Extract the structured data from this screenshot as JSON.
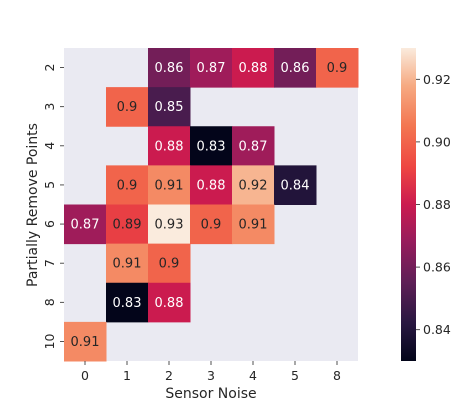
{
  "chart_data": {
    "type": "heatmap",
    "xlabel": "Sensor Noise",
    "ylabel": "Partially Remove Points",
    "x_categories": [
      "0",
      "1",
      "2",
      "3",
      "4",
      "5",
      "8"
    ],
    "y_categories": [
      "2",
      "3",
      "4",
      "5",
      "6",
      "7",
      "8",
      "10"
    ],
    "values": [
      [
        null,
        null,
        0.86,
        0.87,
        0.88,
        0.86,
        0.9
      ],
      [
        null,
        0.9,
        0.85,
        null,
        null,
        null,
        null
      ],
      [
        null,
        null,
        0.88,
        0.83,
        0.87,
        null,
        null
      ],
      [
        null,
        0.9,
        0.91,
        0.88,
        0.92,
        0.84,
        null
      ],
      [
        0.87,
        0.89,
        0.93,
        0.9,
        0.91,
        null,
        null
      ],
      [
        null,
        0.91,
        0.9,
        null,
        null,
        null,
        null
      ],
      [
        null,
        0.83,
        0.88,
        null,
        null,
        null,
        null
      ],
      [
        0.91,
        null,
        null,
        null,
        null,
        null,
        null
      ]
    ],
    "colorbar": {
      "min": 0.83,
      "max": 0.93,
      "ticks": [
        0.84,
        0.86,
        0.88,
        0.9,
        0.92
      ],
      "tick_labels": [
        "0.84",
        "0.86",
        "0.88",
        "0.90",
        "0.92"
      ]
    },
    "missing_color": "#eaeaf2",
    "colormap": "rocket"
  }
}
